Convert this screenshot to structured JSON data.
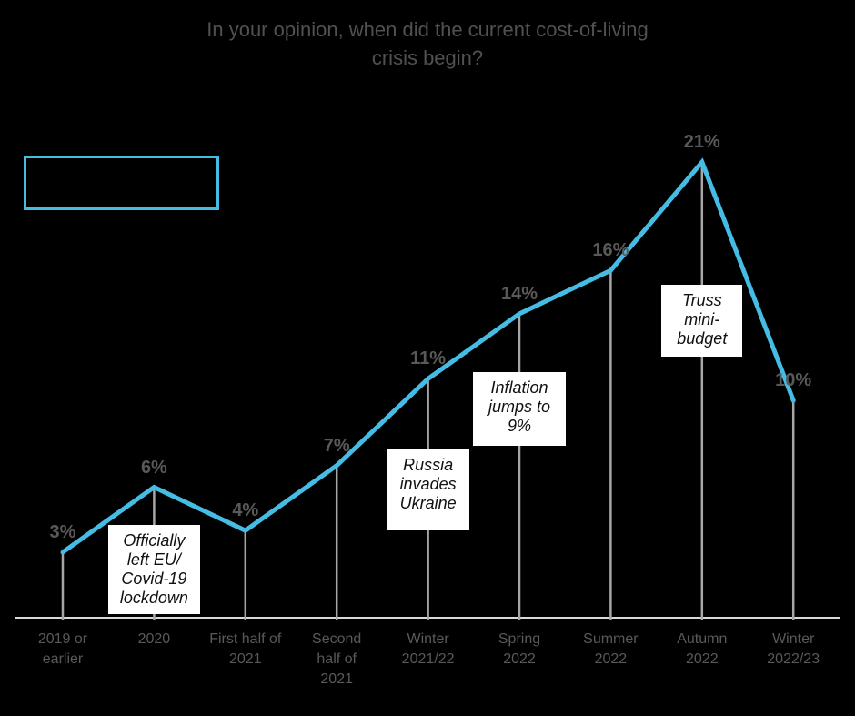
{
  "title": {
    "text": "In your opinion, when did the current cost-of-living\ncrisis begin?"
  },
  "chart_data": {
    "type": "line",
    "title": "In your opinion, when did the current cost-of-living crisis begin?",
    "categories": [
      "2019 or\nearlier",
      "2020",
      "First half of\n2021",
      "Second\nhalf of\n2021",
      "Winter\n2021/22",
      "Spring\n2022",
      "Summer\n2022",
      "Autumn\n2022",
      "Winter\n2022/23"
    ],
    "values": [
      3,
      6,
      4,
      7,
      11,
      14,
      16,
      21,
      10
    ],
    "value_labels": [
      "3%",
      "6%",
      "4%",
      "7%",
      "11%",
      "14%",
      "16%",
      "21%",
      "10%"
    ],
    "ylim": [
      0,
      23
    ],
    "grid": false,
    "legend_position": "none",
    "xlabel": "",
    "ylabel": "",
    "colors": {
      "line": "#45BCE4",
      "stem": "#A6A6A6",
      "axis": "#D9D9D9",
      "value_label": "#595959",
      "axis_label": "#595959",
      "title": "#515151",
      "annotation_text": "#111111",
      "annotation_background": "#FFFFFF",
      "background": "#000000",
      "callout_border": "#45BCE4"
    },
    "annotations": [
      {
        "text": "Officially\nleft EU/\nCovid-19\nlockdown",
        "category": "2020"
      },
      {
        "text": "Russia\ninvades\nUkraine",
        "category": "Winter 2021/22"
      },
      {
        "text": "Inflation\njumps to\n9%",
        "category": "Spring 2022"
      },
      {
        "text": "Truss\nmini-\nbudget",
        "category": "Autumn 2022"
      }
    ],
    "empty_callout_box": true
  }
}
